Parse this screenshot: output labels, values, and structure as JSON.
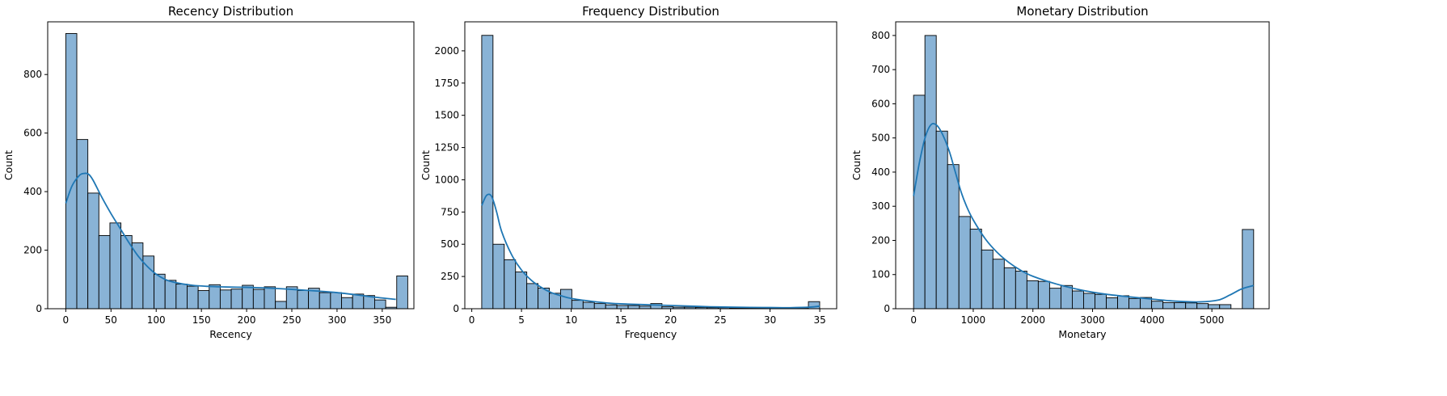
{
  "chart_data": [
    {
      "type": "bar",
      "title": "Recency Distribution",
      "xlabel": "Recency",
      "ylabel": "Count",
      "xlim": [
        -20,
        385
      ],
      "ylim": [
        0,
        980
      ],
      "xticks": [
        0,
        50,
        100,
        150,
        200,
        250,
        300,
        350
      ],
      "yticks": [
        0,
        200,
        400,
        600,
        800
      ],
      "bin_start": 0,
      "bin_width": 12.2,
      "values": [
        940,
        578,
        395,
        250,
        293,
        250,
        225,
        180,
        118,
        97,
        84,
        77,
        62,
        82,
        64,
        67,
        80,
        66,
        75,
        25,
        75,
        62,
        70,
        55,
        55,
        38,
        50,
        45,
        30,
        5,
        112
      ],
      "kde": {
        "x": [
          0,
          7,
          15,
          20,
          25,
          30,
          40,
          50,
          60,
          70,
          80,
          90,
          100,
          110,
          120,
          140,
          160,
          180,
          200,
          220,
          240,
          260,
          280,
          300,
          320,
          340,
          365
        ],
        "y": [
          360,
          420,
          455,
          462,
          460,
          440,
          380,
          325,
          275,
          225,
          180,
          145,
          118,
          100,
          90,
          80,
          76,
          74,
          73,
          71,
          68,
          64,
          60,
          55,
          48,
          40,
          32
        ]
      }
    },
    {
      "type": "bar",
      "title": "Frequency Distribution",
      "xlabel": "Frequency",
      "ylabel": "Count",
      "xlim": [
        -0.7,
        36.7
      ],
      "ylim": [
        0,
        2225
      ],
      "xticks": [
        0,
        5,
        10,
        15,
        20,
        25,
        30,
        35
      ],
      "yticks": [
        0,
        250,
        500,
        750,
        1000,
        1250,
        1500,
        1750,
        2000
      ],
      "yticklabels": [
        "0",
        "250",
        "500",
        "750",
        "1000",
        "1250",
        "1500",
        "1750",
        "2000"
      ],
      "bin_start": 1,
      "bin_width": 1.133,
      "values": [
        2120,
        500,
        380,
        285,
        195,
        160,
        120,
        150,
        65,
        50,
        40,
        30,
        25,
        25,
        20,
        40,
        15,
        12,
        12,
        10,
        8,
        8,
        6,
        5,
        5,
        4,
        3,
        3,
        3,
        55
      ],
      "kde": {
        "x": [
          1,
          1.5,
          2,
          2.5,
          3,
          4,
          5,
          6,
          7,
          8,
          9,
          10,
          12,
          14,
          16,
          18,
          20,
          22,
          24,
          26,
          28,
          30,
          32,
          34,
          35
        ],
        "y": [
          800,
          880,
          870,
          750,
          600,
          420,
          300,
          220,
          165,
          125,
          100,
          80,
          58,
          42,
          35,
          30,
          25,
          20,
          15,
          12,
          10,
          9,
          8,
          12,
          20
        ]
      }
    },
    {
      "type": "bar",
      "title": "Monetary Distribution",
      "xlabel": "Monetary",
      "ylabel": "Count",
      "xlim": [
        -300,
        5960
      ],
      "ylim": [
        0,
        840
      ],
      "xticks": [
        0,
        1000,
        2000,
        3000,
        4000,
        5000
      ],
      "yticks": [
        0,
        100,
        200,
        300,
        400,
        500,
        600,
        700,
        800
      ],
      "bin_start": 0,
      "bin_width": 190,
      "values": [
        625,
        800,
        520,
        422,
        270,
        233,
        172,
        145,
        120,
        110,
        82,
        80,
        60,
        68,
        52,
        45,
        42,
        32,
        38,
        30,
        33,
        22,
        18,
        18,
        17,
        15,
        12,
        12,
        0,
        232
      ],
      "kde": {
        "x": [
          0,
          100,
          200,
          300,
          400,
          500,
          600,
          700,
          800,
          900,
          1000,
          1200,
          1400,
          1600,
          1800,
          2000,
          2400,
          2800,
          3200,
          3600,
          4000,
          4400,
          4800,
          5100,
          5300,
          5500,
          5700
        ],
        "y": [
          330,
          430,
          505,
          540,
          535,
          505,
          460,
          400,
          340,
          295,
          260,
          205,
          165,
          135,
          112,
          95,
          72,
          55,
          43,
          35,
          28,
          22,
          20,
          25,
          40,
          58,
          68
        ]
      }
    }
  ]
}
